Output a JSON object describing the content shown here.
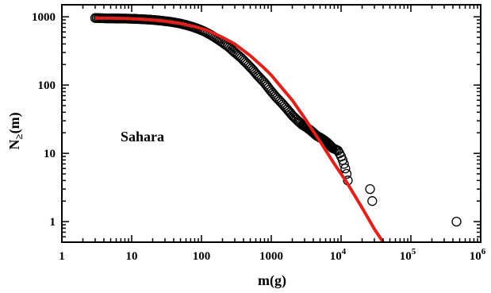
{
  "chart_data": {
    "type": "scatter",
    "title": "",
    "xlabel": "m(g)",
    "ylabel": "N≥(m)",
    "ylabel_main": "N",
    "ylabel_sub": "≥",
    "ylabel_tail": "(m)",
    "annotation": "Sahara",
    "xscale": "log",
    "yscale": "log",
    "xlim": [
      1,
      1000000
    ],
    "ylim": [
      0.5,
      1500
    ],
    "xticks": [
      {
        "value": 1,
        "label": "1",
        "base": "",
        "exp": ""
      },
      {
        "value": 10,
        "label": "10",
        "base": "",
        "exp": ""
      },
      {
        "value": 100,
        "label": "100",
        "base": "",
        "exp": ""
      },
      {
        "value": 1000,
        "label": "1000",
        "base": "",
        "exp": ""
      },
      {
        "value": 10000,
        "label": "",
        "base": "10",
        "exp": "4"
      },
      {
        "value": 100000,
        "label": "",
        "base": "10",
        "exp": "5"
      },
      {
        "value": 1000000,
        "label": "",
        "base": "10",
        "exp": "6"
      }
    ],
    "yticks": [
      {
        "value": 1,
        "label": "1"
      },
      {
        "value": 10,
        "label": "10"
      },
      {
        "value": 100,
        "label": "100"
      },
      {
        "value": 1000,
        "label": "1000"
      }
    ],
    "grid": false,
    "legend": "none",
    "series": [
      {
        "kind": "points",
        "marker": "open-circle",
        "color": "#000000",
        "points": [
          [
            3,
            960
          ],
          [
            3.6,
            955
          ],
          [
            4.3,
            950
          ],
          [
            5.2,
            948
          ],
          [
            6.2,
            945
          ],
          [
            7.4,
            942
          ],
          [
            8.8,
            940
          ],
          [
            10.5,
            935
          ],
          [
            12,
            930
          ],
          [
            15,
            920
          ],
          [
            18,
            910
          ],
          [
            22,
            895
          ],
          [
            27,
            875
          ],
          [
            33,
            855
          ],
          [
            40,
            830
          ],
          [
            50,
            795
          ],
          [
            60,
            760
          ],
          [
            75,
            710
          ],
          [
            90,
            665
          ],
          [
            110,
            610
          ],
          [
            135,
            545
          ],
          [
            165,
            480
          ],
          [
            200,
            420
          ],
          [
            250,
            355
          ],
          [
            300,
            300
          ],
          [
            370,
            250
          ],
          [
            450,
            205
          ],
          [
            550,
            165
          ],
          [
            650,
            135
          ],
          [
            800,
            108
          ],
          [
            950,
            86
          ],
          [
            1150,
            68
          ],
          [
            1400,
            55
          ],
          [
            1700,
            44
          ],
          [
            2000,
            36
          ],
          [
            2400,
            30
          ],
          [
            2800,
            26
          ],
          [
            3200,
            24
          ],
          [
            3600,
            22
          ],
          [
            4000,
            20
          ],
          [
            4500,
            18
          ],
          [
            5000,
            17
          ],
          [
            5500,
            16
          ],
          [
            6000,
            15
          ],
          [
            6500,
            14
          ],
          [
            7000,
            13
          ],
          [
            7500,
            12
          ],
          [
            9000,
            11
          ],
          [
            9500,
            10
          ],
          [
            10000,
            9
          ],
          [
            10500,
            8
          ],
          [
            11000,
            7
          ],
          [
            11500,
            6
          ],
          [
            12000,
            5
          ],
          [
            12500,
            4
          ],
          [
            26000,
            3
          ],
          [
            28000,
            2
          ],
          [
            450000,
            1
          ]
        ]
      },
      {
        "kind": "fit-line",
        "color": "#e0201b",
        "points": [
          [
            3,
            960
          ],
          [
            5,
            955
          ],
          [
            8,
            945
          ],
          [
            12,
            930
          ],
          [
            20,
            900
          ],
          [
            30,
            865
          ],
          [
            50,
            800
          ],
          [
            80,
            720
          ],
          [
            120,
            635
          ],
          [
            200,
            500
          ],
          [
            300,
            400
          ],
          [
            500,
            270
          ],
          [
            800,
            175
          ],
          [
            1000,
            140
          ],
          [
            1500,
            85
          ],
          [
            2000,
            60
          ],
          [
            3000,
            33
          ],
          [
            5000,
            15
          ],
          [
            8000,
            7
          ],
          [
            12000,
            3.8
          ],
          [
            20000,
            1.6
          ],
          [
            30000,
            0.78
          ],
          [
            40000,
            0.5
          ]
        ]
      }
    ],
    "colors": {
      "axis": "#000000",
      "fit": "#e0201b",
      "markers": "#000000"
    }
  }
}
